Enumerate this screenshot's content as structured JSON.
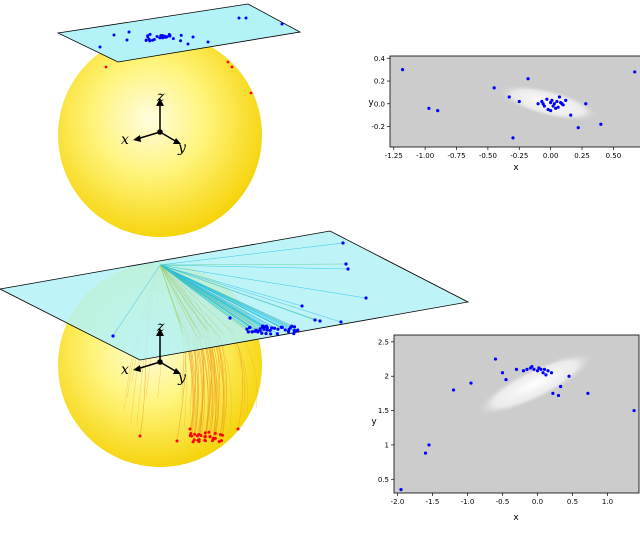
{
  "top_sphere": {
    "axis_labels": {
      "z": "z",
      "x": "x",
      "y": "y"
    }
  },
  "bottom_sphere": {
    "axis_labels": {
      "z": "z",
      "x": "x",
      "y": "y"
    }
  },
  "chart_data": [
    {
      "type": "scatter",
      "xlabel": "x",
      "ylabel": "y",
      "xlim": [
        -1.28,
        0.72
      ],
      "ylim": [
        -0.38,
        0.42
      ],
      "xticks": [
        "-1.25",
        "-1.00",
        "-0.75",
        "-0.50",
        "-0.25",
        "0.00",
        "0.25",
        "0.50"
      ],
      "xtick_values": [
        -1.25,
        -1.0,
        -0.75,
        -0.5,
        -0.25,
        0.0,
        0.25,
        0.5
      ],
      "yticks": [
        "0.4",
        "0.2",
        "0.0",
        "-0.2"
      ],
      "ytick_values": [
        0.4,
        0.2,
        0.0,
        -0.2
      ],
      "points_x": [
        -1.18,
        -0.97,
        -0.9,
        -0.45,
        -0.33,
        -0.3,
        -0.25,
        -0.18,
        -0.1,
        -0.07,
        -0.05,
        -0.03,
        -0.02,
        0.0,
        0.01,
        0.02,
        0.03,
        0.05,
        0.06,
        0.07,
        0.08,
        0.1,
        0.12,
        0.16,
        0.22,
        0.28,
        0.4,
        0.67,
        -0.06,
        0.04,
        0.0,
        0.09
      ],
      "points_y": [
        0.3,
        -0.04,
        -0.06,
        0.14,
        0.06,
        -0.3,
        0.02,
        0.22,
        0.0,
        0.02,
        -0.02,
        0.04,
        -0.05,
        0.01,
        0.03,
        -0.02,
        0.0,
        0.02,
        -0.03,
        0.06,
        0.01,
        -0.01,
        0.03,
        -0.1,
        -0.21,
        0.0,
        -0.18,
        0.28,
        0.0,
        -0.04,
        -0.06,
        0.0
      ]
    },
    {
      "type": "scatter",
      "xlabel": "x",
      "ylabel": "y",
      "xlim": [
        -2.05,
        1.45
      ],
      "ylim": [
        0.3,
        2.6
      ],
      "xticks": [
        "-2.0",
        "-1.5",
        "-1.0",
        "-0.5",
        "0.0",
        "0.5",
        "1.0"
      ],
      "xtick_values": [
        -2.0,
        -1.5,
        -1.0,
        -0.5,
        0.0,
        0.5,
        1.0
      ],
      "yticks": [
        "2.5",
        "2",
        "1.5",
        "1",
        "0.5"
      ],
      "ytick_values": [
        2.5,
        2.0,
        1.5,
        1.0,
        0.5
      ],
      "points_x": [
        -1.95,
        -1.6,
        -1.55,
        -1.2,
        -0.95,
        -0.6,
        -0.5,
        -0.45,
        -0.3,
        -0.2,
        -0.15,
        -0.1,
        -0.05,
        0.0,
        0.02,
        0.05,
        0.08,
        0.1,
        0.15,
        0.2,
        0.22,
        0.3,
        0.33,
        0.45,
        0.72,
        1.38,
        -0.08,
        0.12
      ],
      "points_y": [
        0.35,
        0.88,
        1.0,
        1.8,
        1.9,
        2.25,
        2.05,
        1.95,
        2.1,
        2.08,
        2.1,
        2.12,
        2.1,
        2.08,
        2.12,
        2.1,
        2.05,
        2.1,
        2.08,
        2.05,
        1.75,
        1.72,
        1.85,
        2.0,
        1.75,
        1.5,
        2.14,
        2.02
      ]
    }
  ],
  "colors": {
    "plane": "#b3f2f7",
    "plane_edge": "#000000",
    "projected_point": "#0000ff",
    "sphere_point": "#ff0000",
    "panel_bg": "#cccccc"
  }
}
